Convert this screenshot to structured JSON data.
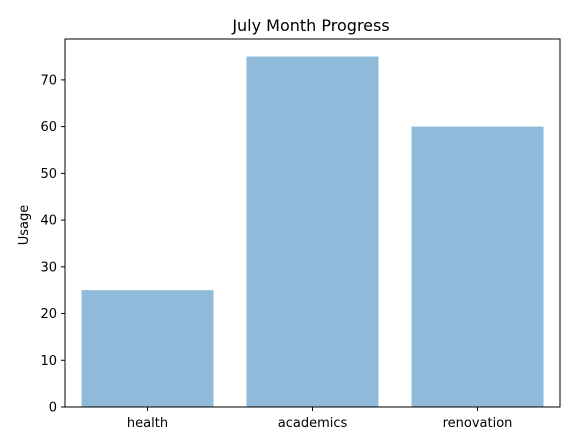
{
  "chart_data": {
    "type": "bar",
    "title": "July Month Progress",
    "xlabel": "",
    "ylabel": "Usage",
    "categories": [
      "health",
      "academics",
      "renovation"
    ],
    "values": [
      25,
      75,
      60
    ],
    "ylim": [
      0,
      78.75
    ],
    "yticks": [
      0,
      10,
      20,
      30,
      40,
      50,
      60,
      70
    ],
    "bar_color": "#8fbad9",
    "grid": false,
    "legend": "none"
  }
}
